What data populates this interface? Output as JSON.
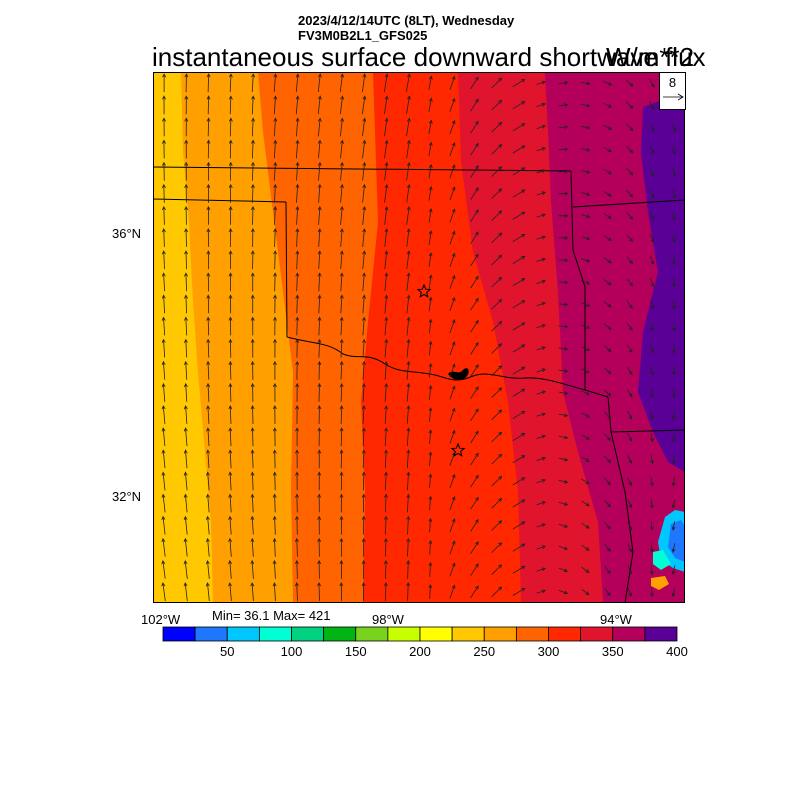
{
  "header": {
    "datetime_line": "2023/4/12/14UTC (8LT), Wednesday",
    "model_line": "FV3M0B2L1_GFS025",
    "title": "instantaneous surface downward shortwave flux",
    "units": "W/m**2"
  },
  "vector_reference": {
    "label": "8"
  },
  "axes": {
    "lat_labels": [
      "36°N",
      "32°N"
    ],
    "lon_labels": [
      "102°W",
      "98°W",
      "94°W"
    ]
  },
  "stats": {
    "text": "Min= 36.1 Max= 421"
  },
  "colorbar": {
    "labels": [
      "50",
      "100",
      "150",
      "200",
      "250",
      "300",
      "350",
      "400"
    ],
    "colors": [
      "#0000ff",
      "#1e78ff",
      "#00c8ff",
      "#00ffd2",
      "#00d282",
      "#00b414",
      "#78d21e",
      "#c8ff00",
      "#ffff00",
      "#ffc800",
      "#ffa000",
      "#ff6400",
      "#ff2800",
      "#e1142d",
      "#b4005a",
      "#5a0096"
    ]
  },
  "chart_data": {
    "type": "heatmap",
    "variable": "instantaneous surface downward shortwave flux",
    "units": "W/m**2",
    "min": 36.1,
    "max": 421,
    "color_levels": [
      25,
      50,
      75,
      100,
      125,
      150,
      175,
      200,
      225,
      250,
      275,
      300,
      325,
      350,
      375,
      400,
      425
    ],
    "lon_range": [
      -102.1,
      -93.5
    ],
    "lat_range": [
      30.5,
      37.0
    ],
    "field_bands": [
      {
        "lon": -101.4,
        "value": 265
      },
      {
        "lon": -100.6,
        "value": 285
      },
      {
        "lon": -99.6,
        "value": 310
      },
      {
        "lon": -98.6,
        "value": 330
      },
      {
        "lon": -97.3,
        "value": 355
      },
      {
        "lon": -96.0,
        "value": 375
      },
      {
        "lon": -94.9,
        "value": 395
      },
      {
        "lon": -94.0,
        "value": 415
      }
    ]
  }
}
